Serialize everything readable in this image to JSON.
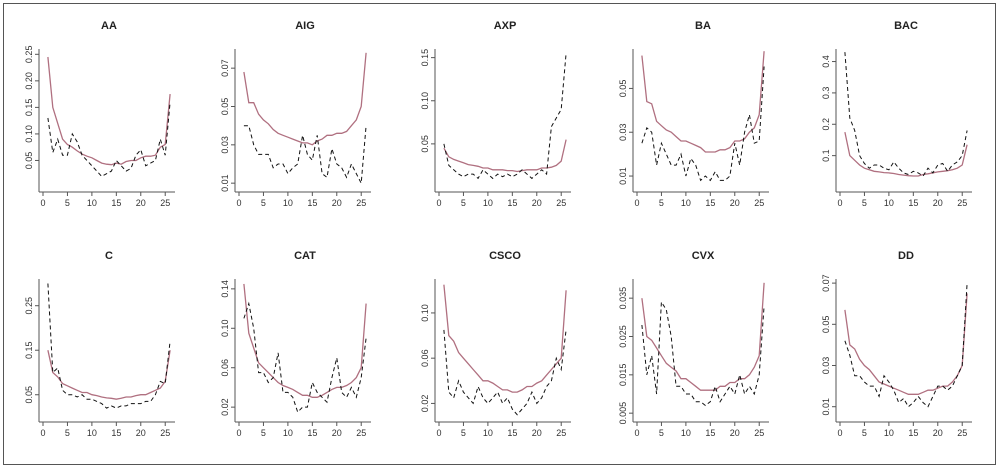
{
  "chart_data": [
    {
      "type": "line",
      "title": "AA",
      "xlim": [
        0,
        27
      ],
      "ylim": [
        0.0,
        0.26
      ],
      "xticks": [
        0,
        5,
        10,
        15,
        20,
        25
      ],
      "yticks": [
        0.05,
        0.1,
        0.15,
        0.2,
        0.25
      ],
      "yticklabels": [
        "0.05",
        "0.10",
        "0.15",
        "0.20",
        "0.25"
      ],
      "x": [
        1,
        2,
        3,
        4,
        5,
        6,
        7,
        8,
        9,
        10,
        11,
        12,
        13,
        14,
        15,
        16,
        17,
        18,
        19,
        20,
        21,
        22,
        23,
        24,
        25,
        26
      ],
      "series": [
        {
          "style": "solid",
          "values": [
            0.245,
            0.15,
            0.12,
            0.09,
            0.08,
            0.075,
            0.068,
            0.062,
            0.058,
            0.055,
            0.05,
            0.045,
            0.043,
            0.042,
            0.045,
            0.043,
            0.048,
            0.05,
            0.05,
            0.055,
            0.058,
            0.058,
            0.06,
            0.075,
            0.08,
            0.175
          ]
        },
        {
          "style": "dashed",
          "values": [
            0.13,
            0.065,
            0.09,
            0.06,
            0.06,
            0.1,
            0.085,
            0.06,
            0.05,
            0.04,
            0.03,
            0.02,
            0.025,
            0.03,
            0.05,
            0.04,
            0.03,
            0.035,
            0.06,
            0.07,
            0.04,
            0.045,
            0.05,
            0.09,
            0.06,
            0.16
          ]
        }
      ]
    },
    {
      "type": "line",
      "title": "AIG",
      "xlim": [
        0,
        27
      ],
      "ylim": [
        0.008,
        0.08
      ],
      "xticks": [
        0,
        5,
        10,
        15,
        20,
        25
      ],
      "yticks": [
        0.01,
        0.03,
        0.05,
        0.07
      ],
      "yticklabels": [
        "0.01",
        "0.03",
        "0.05",
        "0.07"
      ],
      "x": [
        1,
        2,
        3,
        4,
        5,
        6,
        7,
        8,
        9,
        10,
        11,
        12,
        13,
        14,
        15,
        16,
        17,
        18,
        19,
        20,
        21,
        22,
        23,
        24,
        25,
        26
      ],
      "series": [
        {
          "style": "solid",
          "values": [
            0.068,
            0.052,
            0.052,
            0.046,
            0.043,
            0.041,
            0.038,
            0.036,
            0.035,
            0.034,
            0.033,
            0.032,
            0.031,
            0.031,
            0.03,
            0.032,
            0.033,
            0.035,
            0.035,
            0.036,
            0.036,
            0.037,
            0.04,
            0.043,
            0.05,
            0.078
          ]
        },
        {
          "style": "dashed",
          "values": [
            0.04,
            0.04,
            0.03,
            0.025,
            0.025,
            0.025,
            0.018,
            0.02,
            0.02,
            0.015,
            0.018,
            0.02,
            0.035,
            0.025,
            0.022,
            0.035,
            0.015,
            0.013,
            0.028,
            0.02,
            0.018,
            0.013,
            0.02,
            0.015,
            0.01,
            0.04
          ]
        }
      ]
    },
    {
      "type": "line",
      "title": "AXP",
      "xlim": [
        0,
        27
      ],
      "ylim": [
        0.0,
        0.16
      ],
      "xticks": [
        0,
        5,
        10,
        15,
        20,
        25
      ],
      "yticks": [
        0.05,
        0.1,
        0.15
      ],
      "yticklabels": [
        "0.05",
        "0.10",
        "0.15"
      ],
      "x": [
        1,
        2,
        3,
        4,
        5,
        6,
        7,
        8,
        9,
        10,
        11,
        12,
        13,
        14,
        15,
        16,
        17,
        18,
        19,
        20,
        21,
        22,
        23,
        24,
        25,
        26
      ],
      "series": [
        {
          "style": "solid",
          "values": [
            0.045,
            0.035,
            0.032,
            0.03,
            0.028,
            0.026,
            0.025,
            0.024,
            0.022,
            0.022,
            0.02,
            0.02,
            0.02,
            0.019,
            0.019,
            0.018,
            0.019,
            0.02,
            0.02,
            0.02,
            0.022,
            0.022,
            0.023,
            0.025,
            0.03,
            0.055
          ]
        },
        {
          "style": "dashed",
          "values": [
            0.05,
            0.025,
            0.02,
            0.015,
            0.012,
            0.015,
            0.015,
            0.01,
            0.02,
            0.015,
            0.01,
            0.015,
            0.012,
            0.015,
            0.012,
            0.015,
            0.02,
            0.015,
            0.01,
            0.015,
            0.02,
            0.015,
            0.07,
            0.08,
            0.09,
            0.155
          ]
        }
      ]
    },
    {
      "type": "line",
      "title": "BA",
      "xlim": [
        0,
        27
      ],
      "ylim": [
        0.005,
        0.068
      ],
      "xticks": [
        0,
        5,
        10,
        15,
        20,
        25
      ],
      "yticks": [
        0.01,
        0.03,
        0.05
      ],
      "yticklabels": [
        "0.01",
        "0.03",
        "0.05"
      ],
      "x": [
        1,
        2,
        3,
        4,
        5,
        6,
        7,
        8,
        9,
        10,
        11,
        12,
        13,
        14,
        15,
        16,
        17,
        18,
        19,
        20,
        21,
        22,
        23,
        24,
        25,
        26
      ],
      "series": [
        {
          "style": "solid",
          "values": [
            0.065,
            0.044,
            0.043,
            0.035,
            0.033,
            0.031,
            0.03,
            0.028,
            0.026,
            0.026,
            0.025,
            0.024,
            0.023,
            0.021,
            0.021,
            0.021,
            0.022,
            0.022,
            0.023,
            0.026,
            0.026,
            0.027,
            0.03,
            0.032,
            0.038,
            0.067
          ]
        },
        {
          "style": "dashed",
          "values": [
            0.025,
            0.032,
            0.03,
            0.015,
            0.025,
            0.02,
            0.015,
            0.015,
            0.02,
            0.01,
            0.018,
            0.015,
            0.008,
            0.01,
            0.008,
            0.012,
            0.008,
            0.008,
            0.01,
            0.025,
            0.015,
            0.03,
            0.038,
            0.025,
            0.026,
            0.06
          ]
        }
      ]
    },
    {
      "type": "line",
      "title": "BAC",
      "xlim": [
        0,
        27
      ],
      "ylim": [
        0.0,
        0.44
      ],
      "xticks": [
        0,
        5,
        10,
        15,
        20,
        25
      ],
      "yticks": [
        0.1,
        0.2,
        0.3,
        0.4
      ],
      "yticklabels": [
        "0.1",
        "0.2",
        "0.3",
        "0.4"
      ],
      "x": [
        1,
        2,
        3,
        4,
        5,
        6,
        7,
        8,
        9,
        10,
        11,
        12,
        13,
        14,
        15,
        16,
        17,
        18,
        19,
        20,
        21,
        22,
        23,
        24,
        25,
        26
      ],
      "series": [
        {
          "style": "solid",
          "values": [
            0.175,
            0.1,
            0.085,
            0.07,
            0.06,
            0.055,
            0.05,
            0.048,
            0.046,
            0.045,
            0.043,
            0.04,
            0.038,
            0.036,
            0.035,
            0.035,
            0.04,
            0.042,
            0.045,
            0.048,
            0.05,
            0.052,
            0.055,
            0.06,
            0.07,
            0.135
          ]
        },
        {
          "style": "dashed",
          "values": [
            0.43,
            0.22,
            0.18,
            0.1,
            0.075,
            0.06,
            0.07,
            0.07,
            0.06,
            0.055,
            0.08,
            0.06,
            0.045,
            0.04,
            0.05,
            0.045,
            0.035,
            0.06,
            0.045,
            0.07,
            0.075,
            0.05,
            0.07,
            0.08,
            0.1,
            0.18
          ]
        }
      ]
    },
    {
      "type": "line",
      "title": "C",
      "xlim": [
        0,
        27
      ],
      "ylim": [
        0.0,
        0.31
      ],
      "xticks": [
        0,
        5,
        10,
        15,
        20,
        25
      ],
      "yticks": [
        0.05,
        0.15,
        0.25
      ],
      "yticklabels": [
        "0.05",
        "0.15",
        "0.25"
      ],
      "x": [
        1,
        2,
        3,
        4,
        5,
        6,
        7,
        8,
        9,
        10,
        11,
        12,
        13,
        14,
        15,
        16,
        17,
        18,
        19,
        20,
        21,
        22,
        23,
        24,
        25,
        26
      ],
      "series": [
        {
          "style": "solid",
          "values": [
            0.15,
            0.1,
            0.09,
            0.075,
            0.07,
            0.065,
            0.06,
            0.055,
            0.055,
            0.05,
            0.048,
            0.045,
            0.043,
            0.042,
            0.04,
            0.042,
            0.045,
            0.045,
            0.048,
            0.05,
            0.05,
            0.055,
            0.06,
            0.065,
            0.08,
            0.15
          ]
        },
        {
          "style": "dashed",
          "values": [
            0.3,
            0.1,
            0.11,
            0.06,
            0.05,
            0.05,
            0.045,
            0.05,
            0.04,
            0.04,
            0.035,
            0.03,
            0.02,
            0.025,
            0.02,
            0.025,
            0.025,
            0.03,
            0.03,
            0.03,
            0.035,
            0.035,
            0.05,
            0.08,
            0.075,
            0.17
          ]
        }
      ]
    },
    {
      "type": "line",
      "title": "CAT",
      "xlim": [
        0,
        27
      ],
      "ylim": [
        0.01,
        0.15
      ],
      "xticks": [
        0,
        5,
        10,
        15,
        20,
        25
      ],
      "yticks": [
        0.02,
        0.06,
        0.1,
        0.14
      ],
      "yticklabels": [
        "0.02",
        "0.06",
        "0.10",
        "0.14"
      ],
      "x": [
        1,
        2,
        3,
        4,
        5,
        6,
        7,
        8,
        9,
        10,
        11,
        12,
        13,
        14,
        15,
        16,
        17,
        18,
        19,
        20,
        21,
        22,
        23,
        24,
        25,
        26
      ],
      "series": [
        {
          "style": "solid",
          "values": [
            0.145,
            0.095,
            0.08,
            0.065,
            0.06,
            0.055,
            0.05,
            0.045,
            0.042,
            0.04,
            0.038,
            0.035,
            0.032,
            0.032,
            0.03,
            0.03,
            0.032,
            0.035,
            0.038,
            0.04,
            0.04,
            0.042,
            0.045,
            0.05,
            0.06,
            0.125
          ]
        },
        {
          "style": "dashed",
          "values": [
            0.11,
            0.125,
            0.1,
            0.055,
            0.055,
            0.045,
            0.05,
            0.075,
            0.035,
            0.035,
            0.03,
            0.015,
            0.02,
            0.02,
            0.045,
            0.035,
            0.03,
            0.025,
            0.05,
            0.07,
            0.035,
            0.03,
            0.04,
            0.03,
            0.05,
            0.09
          ]
        }
      ]
    },
    {
      "type": "line",
      "title": "CSCO",
      "xlim": [
        0,
        27
      ],
      "ylim": [
        0.008,
        0.13
      ],
      "xticks": [
        0,
        5,
        10,
        15,
        20,
        25
      ],
      "yticks": [
        0.02,
        0.06,
        0.1
      ],
      "yticklabels": [
        "0.02",
        "0.06",
        "0.10"
      ],
      "x": [
        1,
        2,
        3,
        4,
        5,
        6,
        7,
        8,
        9,
        10,
        11,
        12,
        13,
        14,
        15,
        16,
        17,
        18,
        19,
        20,
        21,
        22,
        23,
        24,
        25,
        26
      ],
      "series": [
        {
          "style": "solid",
          "values": [
            0.125,
            0.08,
            0.075,
            0.065,
            0.06,
            0.055,
            0.05,
            0.045,
            0.04,
            0.04,
            0.038,
            0.035,
            0.032,
            0.032,
            0.03,
            0.03,
            0.032,
            0.035,
            0.035,
            0.038,
            0.04,
            0.045,
            0.05,
            0.055,
            0.06,
            0.12
          ]
        },
        {
          "style": "dashed",
          "values": [
            0.085,
            0.03,
            0.025,
            0.04,
            0.03,
            0.025,
            0.02,
            0.035,
            0.025,
            0.02,
            0.025,
            0.03,
            0.02,
            0.025,
            0.015,
            0.01,
            0.015,
            0.02,
            0.03,
            0.02,
            0.025,
            0.035,
            0.04,
            0.06,
            0.05,
            0.085
          ]
        }
      ]
    },
    {
      "type": "line",
      "title": "CVX",
      "xlim": [
        0,
        27
      ],
      "ylim": [
        0.004,
        0.04
      ],
      "xticks": [
        0,
        5,
        10,
        15,
        20,
        25
      ],
      "yticks": [
        0.005,
        0.015,
        0.025,
        0.035
      ],
      "yticklabels": [
        "0.005",
        "0.015",
        "0.025",
        "0.035"
      ],
      "x": [
        1,
        2,
        3,
        4,
        5,
        6,
        7,
        8,
        9,
        10,
        11,
        12,
        13,
        14,
        15,
        16,
        17,
        18,
        19,
        20,
        21,
        22,
        23,
        24,
        25,
        26
      ],
      "series": [
        {
          "style": "solid",
          "values": [
            0.035,
            0.025,
            0.024,
            0.022,
            0.02,
            0.018,
            0.017,
            0.016,
            0.014,
            0.014,
            0.013,
            0.012,
            0.011,
            0.011,
            0.011,
            0.011,
            0.012,
            0.012,
            0.013,
            0.013,
            0.014,
            0.014,
            0.015,
            0.017,
            0.02,
            0.039
          ]
        },
        {
          "style": "dashed",
          "values": [
            0.028,
            0.015,
            0.02,
            0.01,
            0.034,
            0.032,
            0.025,
            0.012,
            0.012,
            0.01,
            0.01,
            0.008,
            0.008,
            0.007,
            0.008,
            0.012,
            0.008,
            0.01,
            0.012,
            0.01,
            0.015,
            0.01,
            0.012,
            0.01,
            0.015,
            0.033
          ]
        }
      ]
    },
    {
      "type": "line",
      "title": "DD",
      "xlim": [
        0,
        27
      ],
      "ylim": [
        0.005,
        0.072
      ],
      "xticks": [
        0,
        5,
        10,
        15,
        20,
        25
      ],
      "yticks": [
        0.01,
        0.03,
        0.05,
        0.07
      ],
      "yticklabels": [
        "0.01",
        "0.03",
        "0.05",
        "0.07"
      ],
      "x": [
        1,
        2,
        3,
        4,
        5,
        6,
        7,
        8,
        9,
        10,
        11,
        12,
        13,
        14,
        15,
        16,
        17,
        18,
        19,
        20,
        21,
        22,
        23,
        24,
        25,
        26
      ],
      "series": [
        {
          "style": "solid",
          "values": [
            0.057,
            0.04,
            0.038,
            0.033,
            0.03,
            0.028,
            0.025,
            0.022,
            0.021,
            0.02,
            0.019,
            0.018,
            0.017,
            0.016,
            0.016,
            0.016,
            0.017,
            0.018,
            0.018,
            0.019,
            0.02,
            0.02,
            0.022,
            0.025,
            0.03,
            0.065
          ]
        },
        {
          "style": "dashed",
          "values": [
            0.042,
            0.035,
            0.025,
            0.025,
            0.022,
            0.02,
            0.02,
            0.015,
            0.025,
            0.022,
            0.018,
            0.012,
            0.014,
            0.01,
            0.012,
            0.015,
            0.012,
            0.01,
            0.015,
            0.02,
            0.02,
            0.018,
            0.02,
            0.025,
            0.03,
            0.07
          ]
        }
      ]
    }
  ],
  "style": {
    "solid_color": "#b07080",
    "dashed_color": "#111111",
    "axis_color": "#555555"
  }
}
